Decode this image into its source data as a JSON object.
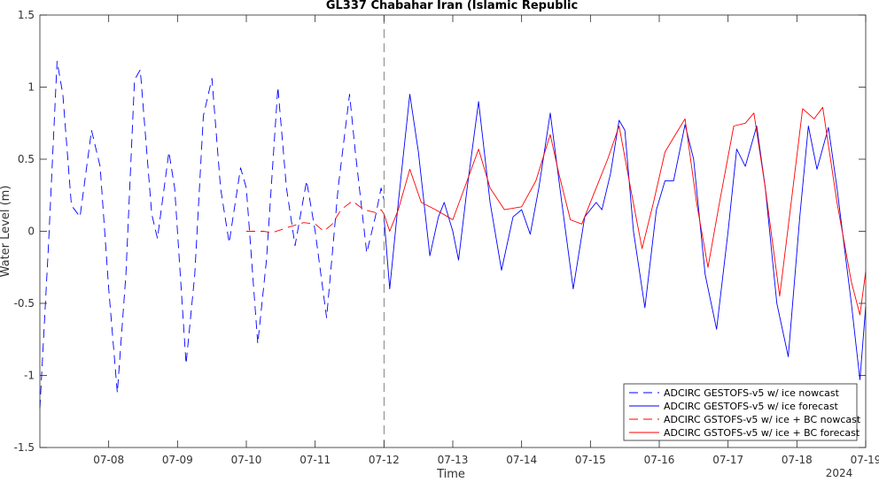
{
  "chart_data": {
    "type": "line",
    "title": "GL337 Chabahar Iran (Islamic Republic",
    "xlabel": "Time",
    "ylabel": "Water Level (m)",
    "x_year_label": "2024",
    "x_range": [
      "2024-07-07T00:00",
      "2024-07-19T00:00"
    ],
    "ylim": [
      -1.5,
      1.5
    ],
    "yticks": [
      -1.5,
      -1,
      -0.5,
      0,
      0.5,
      1,
      1.5
    ],
    "ytick_labels": [
      "-1.5",
      "-1",
      "-0.5",
      "0",
      "0.5",
      "1",
      "1.5"
    ],
    "xticks": [
      "2024-07-08T00:00",
      "2024-07-09T00:00",
      "2024-07-10T00:00",
      "2024-07-11T00:00",
      "2024-07-12T00:00",
      "2024-07-13T00:00",
      "2024-07-14T00:00",
      "2024-07-15T00:00",
      "2024-07-16T00:00",
      "2024-07-17T00:00",
      "2024-07-18T00:00",
      "2024-07-19T00:00"
    ],
    "xtick_labels": [
      "07-08",
      "07-09",
      "07-10",
      "07-11",
      "07-12",
      "07-13",
      "07-14",
      "07-15",
      "07-16",
      "07-17",
      "07-18",
      "07-19"
    ],
    "nowcast_forecast_divider": "2024-07-12T00:00",
    "grid": false,
    "legend_position": "bottom-right",
    "series": [
      {
        "name": "ADCIRC GESTOFS-v5 w/ ice nowcast",
        "color": "#0000ff",
        "dash": "dashed",
        "points": [
          [
            "2024-07-07T00:00",
            -1.23
          ],
          [
            "2024-07-07T03:00",
            -0.1
          ],
          [
            "2024-07-07T06:00",
            1.18
          ],
          [
            "2024-07-07T08:00",
            0.95
          ],
          [
            "2024-07-07T11:00",
            0.18
          ],
          [
            "2024-07-07T14:00",
            0.1
          ],
          [
            "2024-07-07T18:00",
            0.7
          ],
          [
            "2024-07-07T21:00",
            0.45
          ],
          [
            "2024-07-08T00:00",
            -0.4
          ],
          [
            "2024-07-08T03:00",
            -1.12
          ],
          [
            "2024-07-08T06:00",
            -0.3
          ],
          [
            "2024-07-08T09:00",
            1.05
          ],
          [
            "2024-07-08T11:00",
            1.12
          ],
          [
            "2024-07-08T15:00",
            0.12
          ],
          [
            "2024-07-08T17:00",
            -0.05
          ],
          [
            "2024-07-08T21:00",
            0.55
          ],
          [
            "2024-07-08T23:00",
            0.3
          ],
          [
            "2024-07-09T03:00",
            -0.92
          ],
          [
            "2024-07-09T06:00",
            -0.3
          ],
          [
            "2024-07-09T09:00",
            0.8
          ],
          [
            "2024-07-09T12:00",
            1.06
          ],
          [
            "2024-07-09T15:00",
            0.3
          ],
          [
            "2024-07-09T18:00",
            -0.08
          ],
          [
            "2024-07-09T22:00",
            0.44
          ],
          [
            "2024-07-10T00:00",
            0.3
          ],
          [
            "2024-07-10T04:00",
            -0.78
          ],
          [
            "2024-07-10T07:00",
            -0.2
          ],
          [
            "2024-07-10T11:00",
            1.0
          ],
          [
            "2024-07-10T14:00",
            0.3
          ],
          [
            "2024-07-10T17:00",
            -0.1
          ],
          [
            "2024-07-10T21:00",
            0.35
          ],
          [
            "2024-07-11T00:00",
            0.0
          ],
          [
            "2024-07-11T04:00",
            -0.6
          ],
          [
            "2024-07-11T08:00",
            0.3
          ],
          [
            "2024-07-11T12:00",
            0.95
          ],
          [
            "2024-07-11T14:00",
            0.55
          ],
          [
            "2024-07-11T18:00",
            -0.15
          ],
          [
            "2024-07-11T21:00",
            0.1
          ],
          [
            "2024-07-11T23:00",
            0.3
          ],
          [
            "2024-07-12T00:00",
            0.22
          ]
        ]
      },
      {
        "name": "ADCIRC GESTOFS-v5 w/ ice forecast",
        "color": "#0000ff",
        "dash": "solid",
        "points": [
          [
            "2024-07-12T00:00",
            0.1
          ],
          [
            "2024-07-12T02:00",
            -0.4
          ],
          [
            "2024-07-12T05:00",
            0.2
          ],
          [
            "2024-07-12T09:00",
            0.95
          ],
          [
            "2024-07-12T12:00",
            0.55
          ],
          [
            "2024-07-12T16:00",
            -0.17
          ],
          [
            "2024-07-12T19:00",
            0.1
          ],
          [
            "2024-07-12T21:00",
            0.2
          ],
          [
            "2024-07-13T00:00",
            0.0
          ],
          [
            "2024-07-13T02:00",
            -0.2
          ],
          [
            "2024-07-13T05:00",
            0.3
          ],
          [
            "2024-07-13T09:00",
            0.9
          ],
          [
            "2024-07-13T13:00",
            0.2
          ],
          [
            "2024-07-13T17:00",
            -0.27
          ],
          [
            "2024-07-13T21:00",
            0.1
          ],
          [
            "2024-07-14T00:00",
            0.15
          ],
          [
            "2024-07-14T03:00",
            -0.02
          ],
          [
            "2024-07-14T06:00",
            0.3
          ],
          [
            "2024-07-14T10:00",
            0.82
          ],
          [
            "2024-07-14T14:00",
            0.2
          ],
          [
            "2024-07-14T18:00",
            -0.4
          ],
          [
            "2024-07-14T22:00",
            0.1
          ],
          [
            "2024-07-15T02:00",
            0.2
          ],
          [
            "2024-07-15T04:00",
            0.15
          ],
          [
            "2024-07-15T07:00",
            0.4
          ],
          [
            "2024-07-15T10:00",
            0.77
          ],
          [
            "2024-07-15T12:00",
            0.7
          ],
          [
            "2024-07-15T15:00",
            0.0
          ],
          [
            "2024-07-15T19:00",
            -0.53
          ],
          [
            "2024-07-15T23:00",
            0.15
          ],
          [
            "2024-07-16T02:00",
            0.35
          ],
          [
            "2024-07-16T05:00",
            0.35
          ],
          [
            "2024-07-16T09:00",
            0.74
          ],
          [
            "2024-07-16T12:00",
            0.5
          ],
          [
            "2024-07-16T16:00",
            -0.3
          ],
          [
            "2024-07-16T20:00",
            -0.68
          ],
          [
            "2024-07-17T00:00",
            0.0
          ],
          [
            "2024-07-17T03:00",
            0.57
          ],
          [
            "2024-07-17T06:00",
            0.45
          ],
          [
            "2024-07-17T10:00",
            0.73
          ],
          [
            "2024-07-17T13:00",
            0.3
          ],
          [
            "2024-07-17T17:00",
            -0.5
          ],
          [
            "2024-07-17T21:00",
            -0.87
          ],
          [
            "2024-07-18T01:00",
            0.1
          ],
          [
            "2024-07-18T04:00",
            0.73
          ],
          [
            "2024-07-18T07:00",
            0.43
          ],
          [
            "2024-07-18T11:00",
            0.72
          ],
          [
            "2024-07-18T14:00",
            0.3
          ],
          [
            "2024-07-18T19:00",
            -0.5
          ],
          [
            "2024-07-18T22:00",
            -1.03
          ],
          [
            "2024-07-19T00:00",
            -0.52
          ]
        ]
      },
      {
        "name": "ADCIRC GSTOFS-v5 w/ ice + BC nowcast",
        "color": "#ff0000",
        "dash": "dashed",
        "points": [
          [
            "2024-07-10T00:00",
            0.0
          ],
          [
            "2024-07-10T06:00",
            0.0
          ],
          [
            "2024-07-10T09:00",
            -0.01
          ],
          [
            "2024-07-10T15:00",
            0.03
          ],
          [
            "2024-07-10T20:00",
            0.06
          ],
          [
            "2024-07-11T00:00",
            0.05
          ],
          [
            "2024-07-11T03:00",
            0.0
          ],
          [
            "2024-07-11T06:00",
            0.05
          ],
          [
            "2024-07-11T09:00",
            0.15
          ],
          [
            "2024-07-11T13:00",
            0.21
          ],
          [
            "2024-07-11T17:00",
            0.15
          ],
          [
            "2024-07-11T21:00",
            0.13
          ],
          [
            "2024-07-11T23:00",
            0.15
          ],
          [
            "2024-07-12T00:00",
            0.12
          ]
        ]
      },
      {
        "name": "ADCIRC GSTOFS-v5 w/ ice + BC forecast",
        "color": "#ff0000",
        "dash": "solid",
        "points": [
          [
            "2024-07-12T00:00",
            0.12
          ],
          [
            "2024-07-12T02:00",
            0.0
          ],
          [
            "2024-07-12T05:00",
            0.15
          ],
          [
            "2024-07-12T09:00",
            0.43
          ],
          [
            "2024-07-12T13:00",
            0.2
          ],
          [
            "2024-07-12T18:00",
            0.15
          ],
          [
            "2024-07-13T00:00",
            0.08
          ],
          [
            "2024-07-13T05:00",
            0.35
          ],
          [
            "2024-07-13T09:00",
            0.57
          ],
          [
            "2024-07-13T13:00",
            0.3
          ],
          [
            "2024-07-13T18:00",
            0.15
          ],
          [
            "2024-07-14T00:00",
            0.17
          ],
          [
            "2024-07-14T05:00",
            0.35
          ],
          [
            "2024-07-14T10:00",
            0.67
          ],
          [
            "2024-07-14T13:00",
            0.4
          ],
          [
            "2024-07-14T17:00",
            0.08
          ],
          [
            "2024-07-14T21:00",
            0.05
          ],
          [
            "2024-07-15T02:00",
            0.3
          ],
          [
            "2024-07-15T06:00",
            0.5
          ],
          [
            "2024-07-15T10:00",
            0.73
          ],
          [
            "2024-07-15T14:00",
            0.3
          ],
          [
            "2024-07-15T18:00",
            -0.12
          ],
          [
            "2024-07-15T22:00",
            0.2
          ],
          [
            "2024-07-16T02:00",
            0.55
          ],
          [
            "2024-07-16T05:00",
            0.65
          ],
          [
            "2024-07-16T09:00",
            0.78
          ],
          [
            "2024-07-16T13:00",
            0.2
          ],
          [
            "2024-07-16T17:00",
            -0.25
          ],
          [
            "2024-07-16T21:00",
            0.2
          ],
          [
            "2024-07-17T02:00",
            0.73
          ],
          [
            "2024-07-17T06:00",
            0.75
          ],
          [
            "2024-07-17T09:00",
            0.82
          ],
          [
            "2024-07-17T13:00",
            0.3
          ],
          [
            "2024-07-17T18:00",
            -0.45
          ],
          [
            "2024-07-17T22:00",
            0.2
          ],
          [
            "2024-07-18T02:00",
            0.85
          ],
          [
            "2024-07-18T06:00",
            0.78
          ],
          [
            "2024-07-18T09:00",
            0.86
          ],
          [
            "2024-07-18T14:00",
            0.2
          ],
          [
            "2024-07-18T19:00",
            -0.35
          ],
          [
            "2024-07-18T22:00",
            -0.58
          ],
          [
            "2024-07-19T00:00",
            -0.28
          ]
        ]
      }
    ]
  }
}
